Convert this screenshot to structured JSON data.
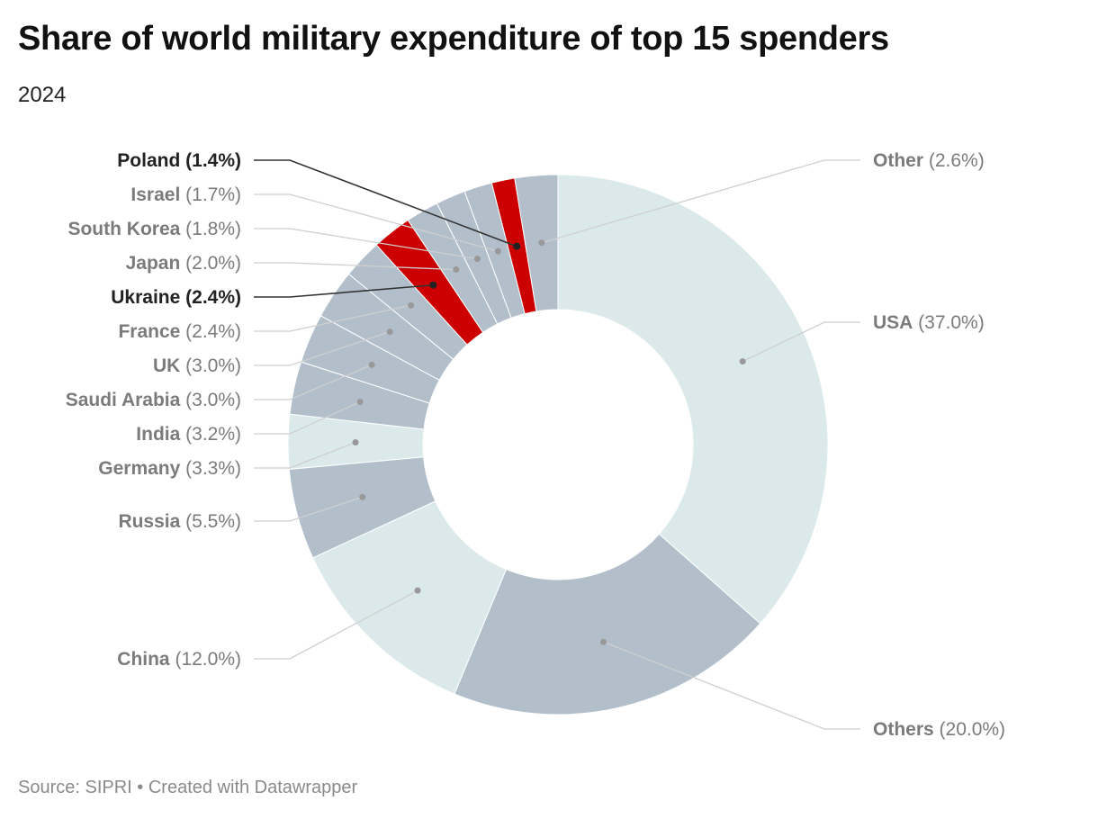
{
  "title": "Share of world military expenditure of top 15 spenders",
  "subtitle": "2024",
  "footer": {
    "source": "Source: SIPRI",
    "separator": " • ",
    "credit": "Created with Datawrapper"
  },
  "colors": {
    "pale": "#dce9ea",
    "gray": "#b2bfcb",
    "highlight": "#cc0000",
    "label_muted": "#7b7b7b",
    "label_strong": "#222222",
    "leader_muted": "#cfcfcf",
    "leader_strong": "#333333"
  },
  "chart_data": {
    "type": "pie",
    "style": "donut",
    "unit": "%",
    "slices": [
      {
        "name": "USA",
        "value": 37.0,
        "label": "(37.0%)",
        "color": "pale",
        "highlight": false
      },
      {
        "name": "Others",
        "value": 20.0,
        "label": "(20.0%)",
        "color": "gray",
        "highlight": false
      },
      {
        "name": "China",
        "value": 12.0,
        "label": "(12.0%)",
        "color": "pale",
        "highlight": false
      },
      {
        "name": "Russia",
        "value": 5.5,
        "label": "(5.5%)",
        "color": "gray",
        "highlight": false
      },
      {
        "name": "Germany",
        "value": 3.3,
        "label": "(3.3%)",
        "color": "pale",
        "highlight": false
      },
      {
        "name": "India",
        "value": 3.2,
        "label": "(3.2%)",
        "color": "gray",
        "highlight": false
      },
      {
        "name": "Saudi Arabia",
        "value": 3.0,
        "label": "(3.0%)",
        "color": "gray",
        "highlight": false
      },
      {
        "name": "UK",
        "value": 3.0,
        "label": "(3.0%)",
        "color": "gray",
        "highlight": false
      },
      {
        "name": "France",
        "value": 2.4,
        "label": "(2.4%)",
        "color": "gray",
        "highlight": false
      },
      {
        "name": "Ukraine",
        "value": 2.4,
        "label": "(2.4%)",
        "color": "highlight",
        "highlight": true
      },
      {
        "name": "Japan",
        "value": 2.0,
        "label": "(2.0%)",
        "color": "gray",
        "highlight": false
      },
      {
        "name": "South Korea",
        "value": 1.8,
        "label": "(1.8%)",
        "color": "gray",
        "highlight": false
      },
      {
        "name": "Israel",
        "value": 1.7,
        "label": "(1.7%)",
        "color": "gray",
        "highlight": false
      },
      {
        "name": "Poland",
        "value": 1.4,
        "label": "(1.4%)",
        "color": "highlight",
        "highlight": true
      },
      {
        "name": "Other",
        "value": 2.6,
        "label": "(2.6%)",
        "color": "gray",
        "highlight": false
      }
    ]
  }
}
